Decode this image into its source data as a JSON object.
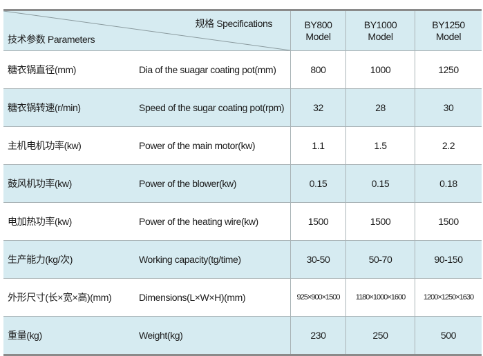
{
  "header": {
    "specifications": "规格 Specifications",
    "parameters": "技术参数 Parameters",
    "models": [
      {
        "name": "BY800",
        "sub": "Model"
      },
      {
        "name": "BY1000",
        "sub": "Model"
      },
      {
        "name": "BY1250",
        "sub": "Model"
      }
    ]
  },
  "rows": [
    {
      "cn": "糖衣锅直径(mm)",
      "en": "Dia of the suagar coating pot(mm)",
      "values": [
        "800",
        "1000",
        "1250"
      ]
    },
    {
      "cn": "糖衣锅转速(r/min)",
      "en": "Speed of the sugar coating pot(rpm)",
      "values": [
        "32",
        "28",
        "30"
      ]
    },
    {
      "cn": "主机电机功率(kw)",
      "en": "Power of the main motor(kw)",
      "values": [
        "1.1",
        "1.5",
        "2.2"
      ]
    },
    {
      "cn": "鼓风机功率(kw)",
      "en": "Power of the blower(kw)",
      "values": [
        "0.15",
        "0.15",
        "0.18"
      ]
    },
    {
      "cn": "电加热功率(kw)",
      "en": "Power of the heating wire(kw)",
      "values": [
        "1500",
        "1500",
        "1500"
      ]
    },
    {
      "cn": "生产能力(kg/次)",
      "en": "Working capacity(tg/time)",
      "values": [
        "30-50",
        "50-70",
        "90-150"
      ]
    },
    {
      "cn": "外形尺寸(长×宽×高)(mm)",
      "en": "Dimensions(L×W×H)(mm)",
      "values": [
        "925×900×1500",
        "1180×1000×1600",
        "1200×1250×1630"
      ]
    },
    {
      "cn": "重量(kg)",
      "en": "Weight(kg)",
      "values": [
        "230",
        "250",
        "500"
      ]
    }
  ],
  "colors": {
    "shade": "#d6ebf1",
    "border": "#8a8a8a"
  }
}
